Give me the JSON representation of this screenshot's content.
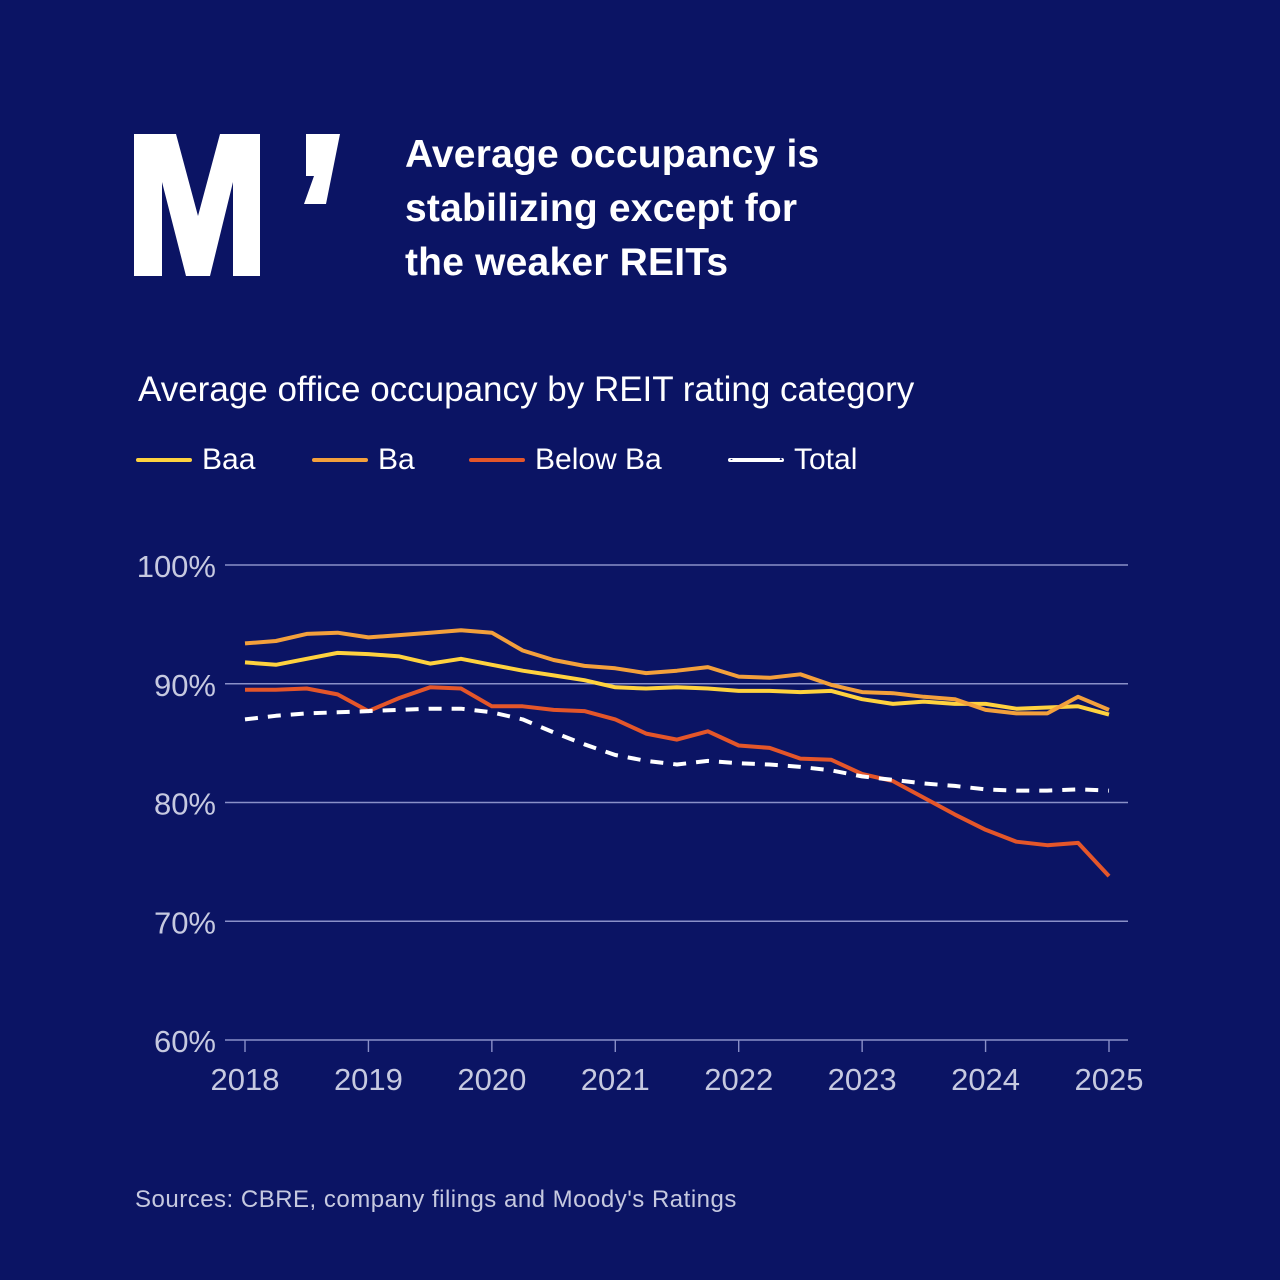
{
  "headline": "Average occupancy is\nstabilizing except for\nthe weaker REITs",
  "source": "Sources: CBRE, company filings and Moody's Ratings",
  "colors": {
    "background": "#0b1464",
    "grid": "#8a90c8",
    "tick_text": "#c6c9e0",
    "Baa": "#ffd23f",
    "Ba": "#f3a03c",
    "Below Ba": "#e4562a",
    "Total": "#ffffff"
  },
  "chart_data": {
    "type": "line",
    "title": "Average office occupancy by REIT rating category",
    "xlabel": "",
    "ylabel": "",
    "x_ticks": [
      "2018",
      "2019",
      "2020",
      "2021",
      "2022",
      "2023",
      "2024",
      "2025"
    ],
    "y_ticks": [
      "100%",
      "90%",
      "80%",
      "70%",
      "60%"
    ],
    "ylim": [
      60,
      100
    ],
    "xlim": [
      2018,
      2025
    ],
    "grid": "horizontal",
    "legend_position": "top-left",
    "x": [
      2018.0,
      2018.25,
      2018.5,
      2018.75,
      2019.0,
      2019.25,
      2019.5,
      2019.75,
      2020.0,
      2020.25,
      2020.5,
      2020.75,
      2021.0,
      2021.25,
      2021.5,
      2021.75,
      2022.0,
      2022.25,
      2022.5,
      2022.75,
      2023.0,
      2023.25,
      2023.5,
      2023.75,
      2024.0,
      2024.25,
      2024.5,
      2024.75,
      2025.0
    ],
    "series": [
      {
        "name": "Baa",
        "style": "solid",
        "values": [
          91.8,
          91.6,
          92.1,
          92.6,
          92.5,
          92.3,
          91.7,
          92.1,
          91.6,
          91.1,
          90.7,
          90.3,
          89.7,
          89.6,
          89.7,
          89.6,
          89.4,
          89.4,
          89.3,
          89.4,
          88.7,
          88.3,
          88.5,
          88.3,
          88.3,
          87.9,
          88.0,
          88.1,
          87.4
        ]
      },
      {
        "name": "Ba",
        "style": "solid",
        "values": [
          93.4,
          93.6,
          94.2,
          94.3,
          93.9,
          94.1,
          94.3,
          94.5,
          94.3,
          92.8,
          92.0,
          91.5,
          91.3,
          90.9,
          91.1,
          91.4,
          90.6,
          90.5,
          90.8,
          89.9,
          89.3,
          89.2,
          88.9,
          88.7,
          87.8,
          87.5,
          87.5,
          88.9,
          87.8
        ]
      },
      {
        "name": "Below Ba",
        "style": "solid",
        "values": [
          89.5,
          89.5,
          89.6,
          89.1,
          87.7,
          88.8,
          89.7,
          89.6,
          88.1,
          88.1,
          87.8,
          87.7,
          87.0,
          85.8,
          85.3,
          86.0,
          84.8,
          84.6,
          83.7,
          83.6,
          82.4,
          81.8,
          80.4,
          79.0,
          77.7,
          76.7,
          76.4,
          76.6,
          73.8
        ]
      },
      {
        "name": "Total",
        "style": "dashed",
        "values": [
          87.0,
          87.3,
          87.5,
          87.6,
          87.7,
          87.8,
          87.9,
          87.9,
          87.6,
          87.0,
          85.9,
          84.9,
          84.0,
          83.5,
          83.2,
          83.5,
          83.3,
          83.2,
          83.0,
          82.7,
          82.2,
          81.9,
          81.6,
          81.4,
          81.1,
          81.0,
          81.0,
          81.1,
          81.0
        ]
      }
    ]
  }
}
